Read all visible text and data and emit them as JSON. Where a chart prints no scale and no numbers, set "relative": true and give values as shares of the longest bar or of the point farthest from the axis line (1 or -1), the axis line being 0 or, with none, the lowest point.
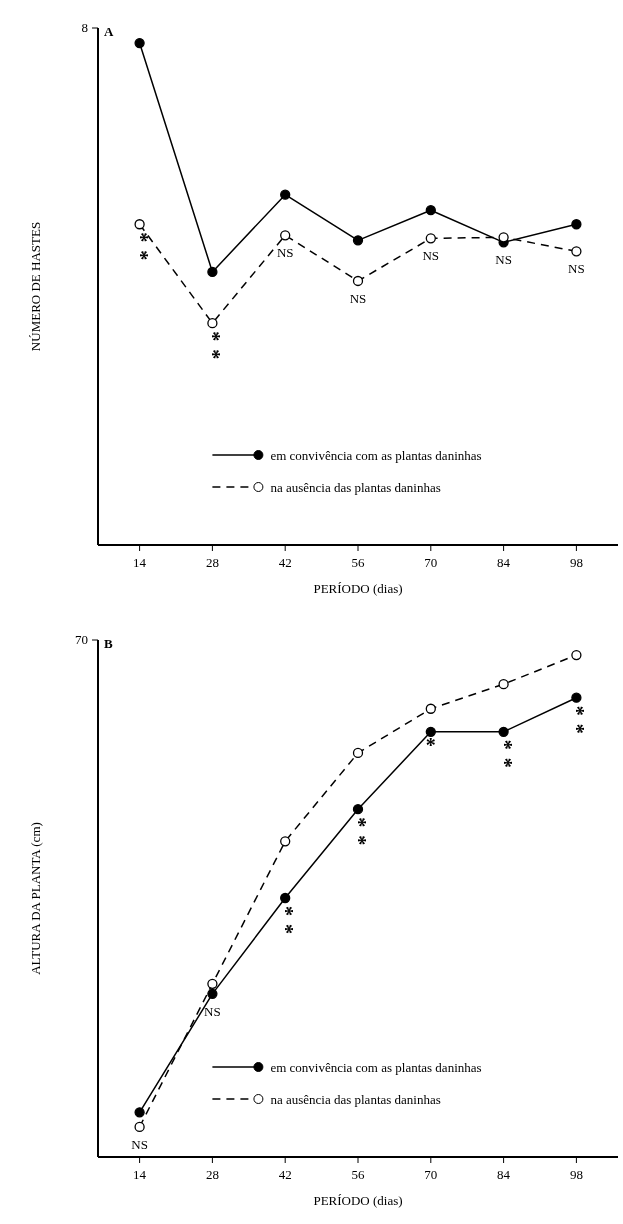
{
  "chart_data": [
    {
      "type": "line",
      "title": "A",
      "xlabel": "PERÍODO (dias)",
      "ylabel": "NÚMERO DE HASTES",
      "relative": true,
      "x": [
        14,
        28,
        42,
        56,
        70,
        84,
        98
      ],
      "xlim": [
        6,
        106
      ],
      "xticks": [
        14,
        28,
        42,
        56,
        70,
        84,
        98
      ],
      "marker": "circle",
      "legend": "bottom right",
      "grid": false,
      "series": [
        {
          "name": "em convivência com as plantas daninhas",
          "color": "#000000",
          "line_style": "solid",
          "values": [
            1,
            0.544,
            0.698,
            0.607,
            0.667,
            0.603,
            0.639
          ]
        },
        {
          "name": "na ausência das plantas daninhas",
          "color": "#000000",
          "line_style": "dashed",
          "values": [
            0.639,
            0.442,
            0.617,
            0.526,
            0.611,
            0.613,
            0.585
          ]
        }
      ],
      "annotations": [
        "8",
        {
          "text": "**",
          "x": 14,
          "y": 0.639
        },
        {
          "text": "**",
          "x": 28,
          "y": 0.442
        },
        {
          "text": "NS",
          "x": 42,
          "y": 0.617
        },
        {
          "text": "NS",
          "x": 56,
          "y": 0.526
        },
        {
          "text": "NS",
          "x": 70,
          "y": 0.611
        },
        {
          "text": "NS",
          "x": 84,
          "y": 0.603
        },
        {
          "text": "NS",
          "x": 98,
          "y": 0.585
        }
      ]
    },
    {
      "type": "line",
      "title": "B",
      "xlabel": "PERÍODO (dias)",
      "ylabel": "ALTURA DA PLANTA (cm)",
      "relative": true,
      "x": [
        14,
        28,
        42,
        56,
        70,
        84,
        98
      ],
      "xlim": [
        6,
        106
      ],
      "xticks": [
        14,
        28,
        42,
        56,
        70,
        84,
        98
      ],
      "marker": "circle",
      "legend": "bottom right",
      "grid": false,
      "series": [
        {
          "name": "em convivência com as plantas daninhas",
          "color": "#000000",
          "line_style": "solid",
          "values": [
            0.089,
            0.325,
            0.516,
            0.693,
            0.847,
            0.847,
            0.915
          ]
        },
        {
          "name": "na ausência das plantas daninhas",
          "color": "#000000",
          "line_style": "dashed",
          "values": [
            0.06,
            0.345,
            0.629,
            0.805,
            0.893,
            0.942,
            1
          ]
        }
      ],
      "annotations": [
        "70",
        {
          "text": "NS",
          "x": 14,
          "y": 0.06
        },
        {
          "text": "NS",
          "x": 28,
          "y": 0.325
        },
        {
          "text": "**",
          "x": 42,
          "y": 0.516
        },
        {
          "text": "**",
          "x": 56,
          "y": 0.693
        },
        {
          "text": "*",
          "x": 70,
          "y": 0.847
        },
        {
          "text": "**",
          "x": 84,
          "y": 0.847
        },
        {
          "text": "**",
          "x": 98,
          "y": 0.915
        }
      ]
    }
  ]
}
